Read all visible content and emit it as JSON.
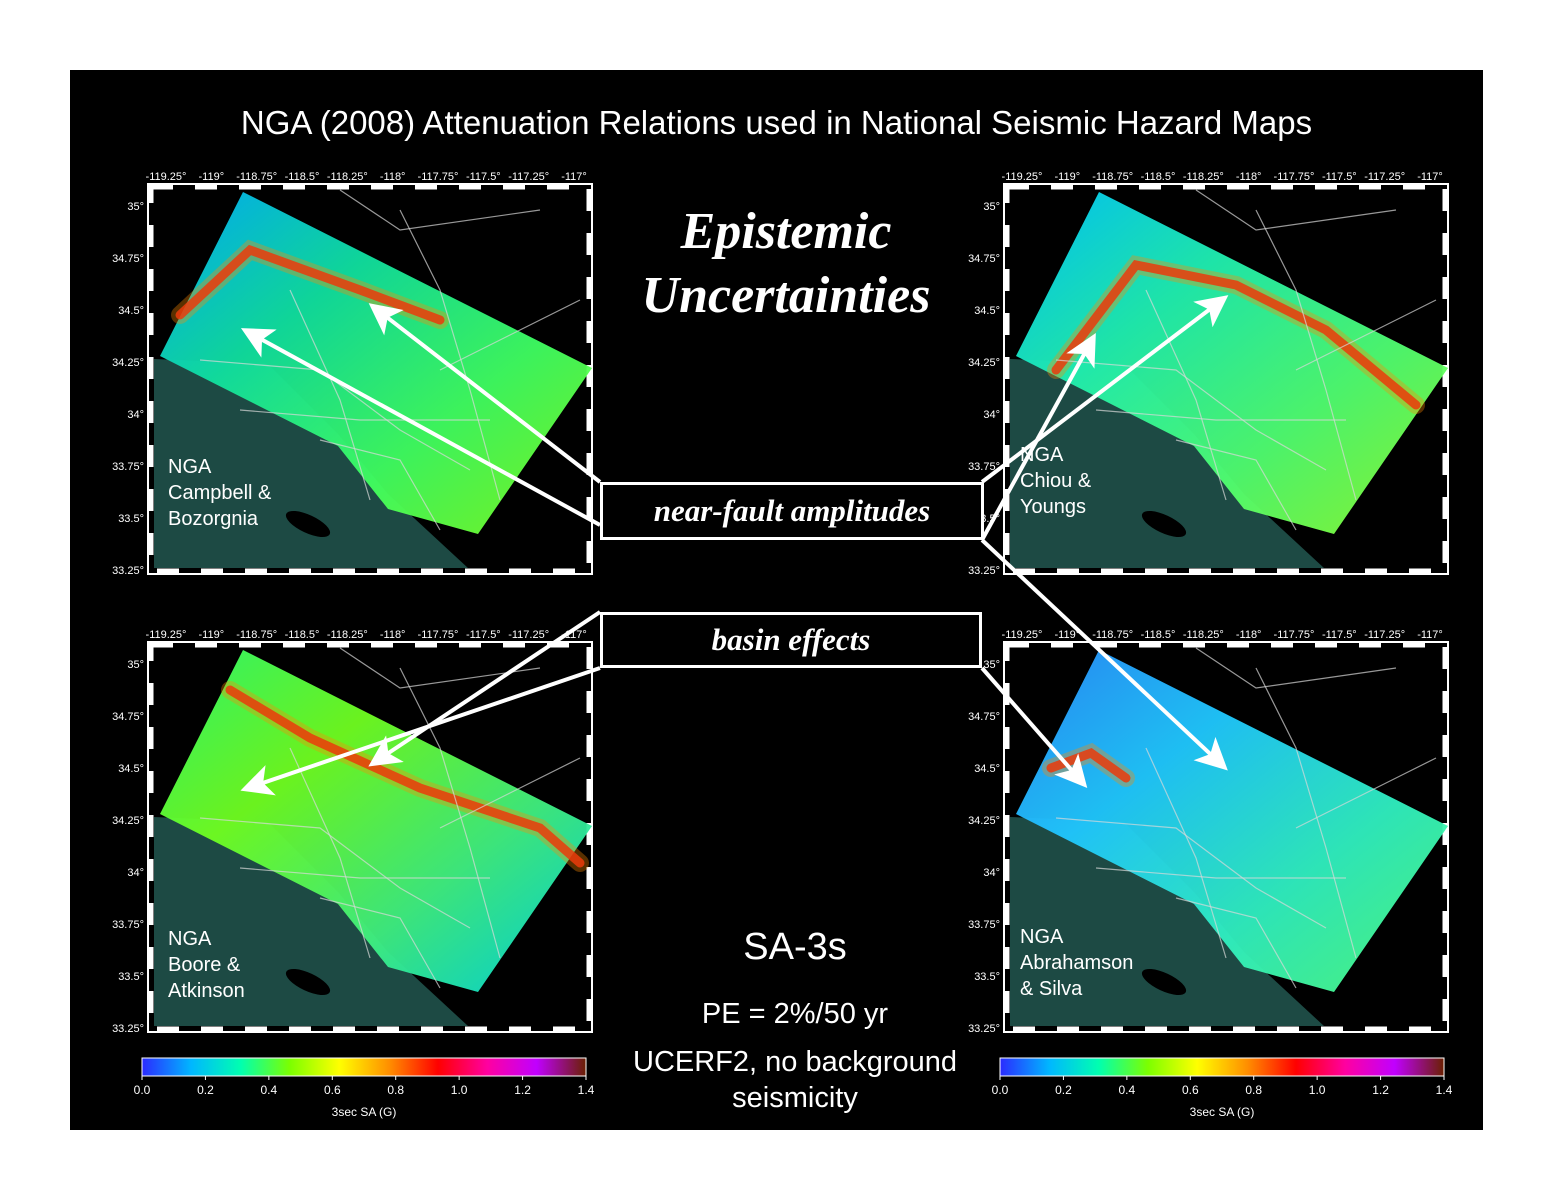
{
  "title": "NGA (2008) Attenuation Relations used in National Seismic Hazard Maps",
  "epistemic": {
    "line1": "Epistemic",
    "line2": "Uncertainties"
  },
  "labels": {
    "near_fault": "near-fault amplitudes",
    "basin": "basin effects"
  },
  "info": {
    "period": "SA-3s",
    "pe": "PE = 2%/50 yr",
    "ucerf_line1": "UCERF2, no background",
    "ucerf_line2": "seismicity"
  },
  "lon_ticks": [
    "-119.25°",
    "-119°",
    "-118.75°",
    "-118.5°",
    "-118.25°",
    "-118°",
    "-117.75°",
    "-117.5°",
    "-117.25°",
    "-117°"
  ],
  "lat_ticks": [
    "35°",
    "34.75°",
    "34.5°",
    "34.25°",
    "34°",
    "33.75°",
    "33.5°",
    "33.25°"
  ],
  "maps": [
    {
      "id": "tl",
      "label_lines": [
        "NGA",
        "Campbell &",
        "Bozorgnia"
      ]
    },
    {
      "id": "tr",
      "label_lines": [
        "NGA",
        "Chiou &",
        "Youngs"
      ]
    },
    {
      "id": "bl",
      "label_lines": [
        "NGA",
        "Boore &",
        "Atkinson"
      ]
    },
    {
      "id": "br",
      "label_lines": [
        "NGA",
        "Abrahamson",
        "&  Silva"
      ]
    }
  ],
  "colorbar": {
    "ticks": [
      "0.0",
      "0.2",
      "0.4",
      "0.6",
      "0.8",
      "1.0",
      "1.2",
      "1.4"
    ],
    "label": "3sec SA (G)",
    "colors": [
      "#2b2bff",
      "#00b7ff",
      "#00ffb0",
      "#7cff00",
      "#ffff00",
      "#ff9000",
      "#ff0000",
      "#ff00a0",
      "#c000ff",
      "#6a2000"
    ]
  },
  "colors": {
    "ocean": "#1d4a44",
    "fault": "#e01010",
    "arrow": "#ffffff"
  }
}
